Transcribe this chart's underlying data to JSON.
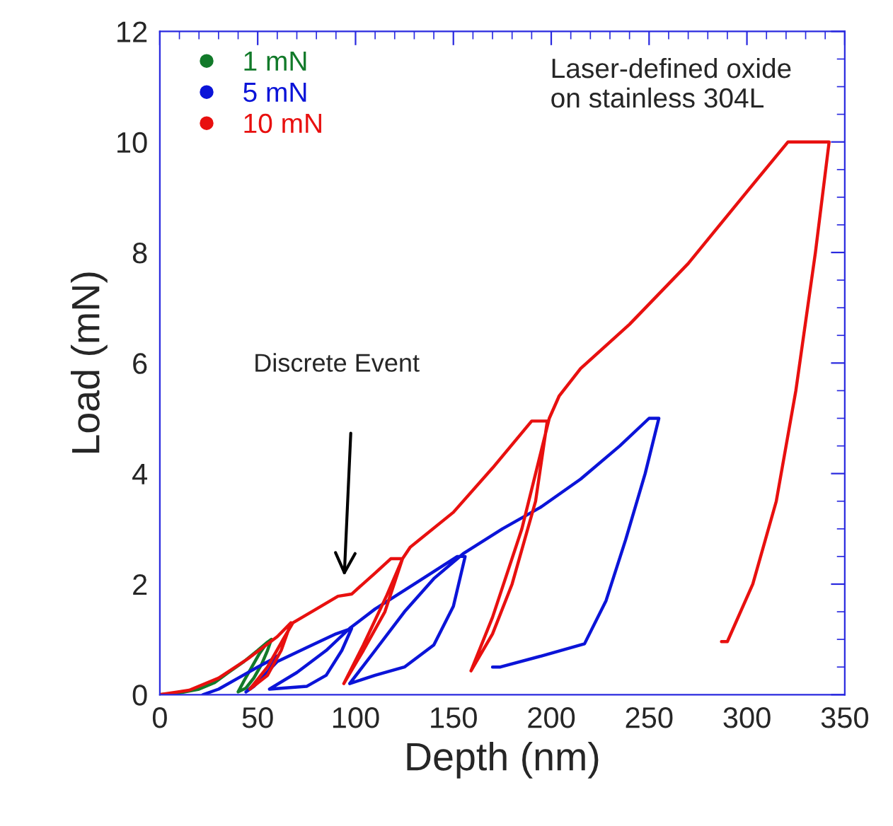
{
  "chart_data": {
    "type": "line",
    "xlabel": "Depth (nm)",
    "ylabel": "Load (mN)",
    "xlim": [
      0,
      350
    ],
    "xticks": [
      0,
      50,
      100,
      150,
      200,
      250,
      300,
      350
    ],
    "ylim": [
      0,
      12
    ],
    "yticks": [
      0,
      2,
      4,
      6,
      8,
      10,
      12
    ],
    "grid": false,
    "legend": "top left",
    "marker": "none",
    "line_style": "solid",
    "series": [
      {
        "name": "1 mN",
        "color": "#127a2a",
        "x": [
          0,
          10,
          20,
          28,
          35,
          43,
          50,
          55,
          57,
          55,
          52,
          48,
          44,
          40,
          43,
          47,
          51,
          55,
          57
        ],
        "values": [
          0,
          0.03,
          0.1,
          0.22,
          0.4,
          0.6,
          0.8,
          0.95,
          1.0,
          0.8,
          0.55,
          0.3,
          0.12,
          0.05,
          0.25,
          0.5,
          0.75,
          0.95,
          1.0
        ]
      },
      {
        "name": "5 mN",
        "color": "#0b14d8",
        "x": [
          22,
          30,
          40,
          50,
          58,
          60,
          55,
          48,
          44,
          52,
          60,
          75,
          90,
          98,
          93,
          85,
          75,
          56,
          70,
          85,
          97,
          110,
          130,
          152,
          156,
          150,
          140,
          125,
          110,
          97,
          110,
          125,
          140,
          155,
          175,
          195,
          215,
          235,
          250,
          255,
          248,
          238,
          228,
          217,
          195,
          174,
          170
        ],
        "values": [
          0,
          0.1,
          0.3,
          0.5,
          0.65,
          0.7,
          0.4,
          0.15,
          0.05,
          0.3,
          0.6,
          0.85,
          1.1,
          1.2,
          0.8,
          0.35,
          0.15,
          0.1,
          0.4,
          0.8,
          1.2,
          1.55,
          2.0,
          2.5,
          2.5,
          1.6,
          0.9,
          0.5,
          0.35,
          0.2,
          0.8,
          1.5,
          2.1,
          2.55,
          3.0,
          3.4,
          3.9,
          4.5,
          5.0,
          5.0,
          4.0,
          2.8,
          1.7,
          0.92,
          0.7,
          0.5,
          0.5
        ]
      },
      {
        "name": "10 mN",
        "color": "#e8100f",
        "x": [
          0,
          15,
          30,
          45,
          60,
          67,
          62,
          55,
          46,
          55,
          63,
          68,
          80,
          91,
          98,
          110,
          118,
          124,
          115,
          104,
          94,
          104,
          116,
          124,
          128,
          150,
          170,
          190,
          198,
          192,
          180,
          170,
          159,
          170,
          185,
          199,
          204,
          215,
          240,
          270,
          300,
          321,
          342,
          335,
          325,
          315,
          303,
          290,
          287
        ],
        "values": [
          0,
          0.08,
          0.3,
          0.65,
          1.05,
          1.3,
          0.8,
          0.35,
          0.1,
          0.5,
          1.0,
          1.3,
          1.55,
          1.78,
          1.82,
          2.2,
          2.46,
          2.46,
          1.5,
          0.8,
          0.2,
          0.9,
          1.8,
          2.46,
          2.67,
          3.3,
          4.1,
          4.95,
          4.95,
          3.5,
          2.0,
          1.1,
          0.43,
          1.4,
          3.0,
          5.0,
          5.4,
          5.9,
          6.7,
          7.8,
          9.1,
          10.0,
          10.0,
          8.0,
          5.5,
          3.5,
          2.0,
          0.96,
          0.96
        ]
      }
    ],
    "annotations": [
      "Laser-defined oxide\non stainless 304L",
      "Discrete Event"
    ]
  }
}
